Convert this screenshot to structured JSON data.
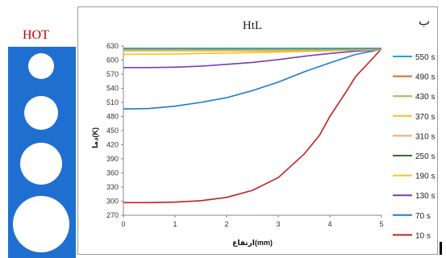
{
  "hot_label": "HOT",
  "figure_letter": "ب",
  "colors": {
    "panel": "#1f6fd1",
    "hot": "#c00000"
  },
  "holes": [
    {
      "cx": 41,
      "cy": 24,
      "r": 16
    },
    {
      "cx": 41,
      "cy": 82,
      "r": 21
    },
    {
      "cx": 41,
      "cy": 145,
      "r": 26
    },
    {
      "cx": 41,
      "cy": 220,
      "r": 35
    }
  ],
  "chart_data": {
    "type": "line",
    "title": "HtL",
    "xlabel": "ارتفاع(mm)",
    "ylabel": "دما(K)",
    "xlim": [
      0,
      5
    ],
    "ylim": [
      270,
      630
    ],
    "xticks": [
      0,
      1,
      2,
      3,
      4,
      5
    ],
    "yticks": [
      270,
      300,
      330,
      360,
      390,
      420,
      450,
      480,
      510,
      540,
      570,
      600,
      630
    ],
    "grid": false,
    "legend": "right",
    "series": [
      {
        "name": "550 s",
        "color": "#1fa3df",
        "x": [
          0,
          1,
          2,
          3,
          4,
          5
        ],
        "y": [
          625,
          625,
          625,
          625,
          625,
          625
        ]
      },
      {
        "name": "490 s",
        "color": "#d07020",
        "x": [
          0,
          1,
          2,
          3,
          4,
          5
        ],
        "y": [
          624,
          624,
          624,
          624,
          624,
          624
        ]
      },
      {
        "name": "430 s",
        "color": "#8cc850",
        "x": [
          0,
          1,
          2,
          3,
          4,
          5
        ],
        "y": [
          623,
          623,
          623,
          623,
          623,
          624
        ]
      },
      {
        "name": "370 s",
        "color": "#f0c020",
        "x": [
          0,
          1,
          2,
          3,
          4,
          5
        ],
        "y": [
          622,
          622,
          622,
          622,
          622,
          623
        ]
      },
      {
        "name": "310 s",
        "color": "#f0a870",
        "x": [
          0,
          1,
          2,
          3,
          4,
          5
        ],
        "y": [
          620,
          620,
          620,
          620,
          621,
          622
        ]
      },
      {
        "name": "250 s",
        "color": "#3a6b2a",
        "x": [
          0,
          1,
          2,
          3,
          4,
          5
        ],
        "y": [
          620,
          620,
          620,
          620,
          621,
          622
        ]
      },
      {
        "name": "190 s",
        "color": "#f5c518",
        "x": [
          0,
          1,
          2,
          3,
          4,
          5
        ],
        "y": [
          612,
          613,
          615,
          617,
          620,
          622
        ]
      },
      {
        "name": "130 s",
        "color": "#7a3db0",
        "x": [
          0,
          0.5,
          1,
          1.5,
          2,
          2.5,
          3,
          3.5,
          4,
          4.5,
          5
        ],
        "y": [
          584,
          584,
          585,
          587,
          591,
          595,
          601,
          608,
          614,
          619,
          622
        ]
      },
      {
        "name": "70 s",
        "color": "#1e7ad0",
        "x": [
          0,
          0.5,
          1,
          1.5,
          2,
          2.5,
          3,
          3.5,
          4,
          4.5,
          5
        ],
        "y": [
          496,
          497,
          502,
          510,
          520,
          535,
          553,
          575,
          594,
          612,
          623
        ]
      },
      {
        "name": "10 s",
        "color": "#c42020",
        "x": [
          0,
          0.5,
          1,
          1.5,
          2,
          2.5,
          3,
          3.5,
          3.8,
          4,
          4.3,
          4.5,
          4.8,
          5
        ],
        "y": [
          297,
          297,
          298,
          301,
          308,
          323,
          350,
          400,
          440,
          480,
          530,
          565,
          600,
          624
        ]
      }
    ]
  }
}
